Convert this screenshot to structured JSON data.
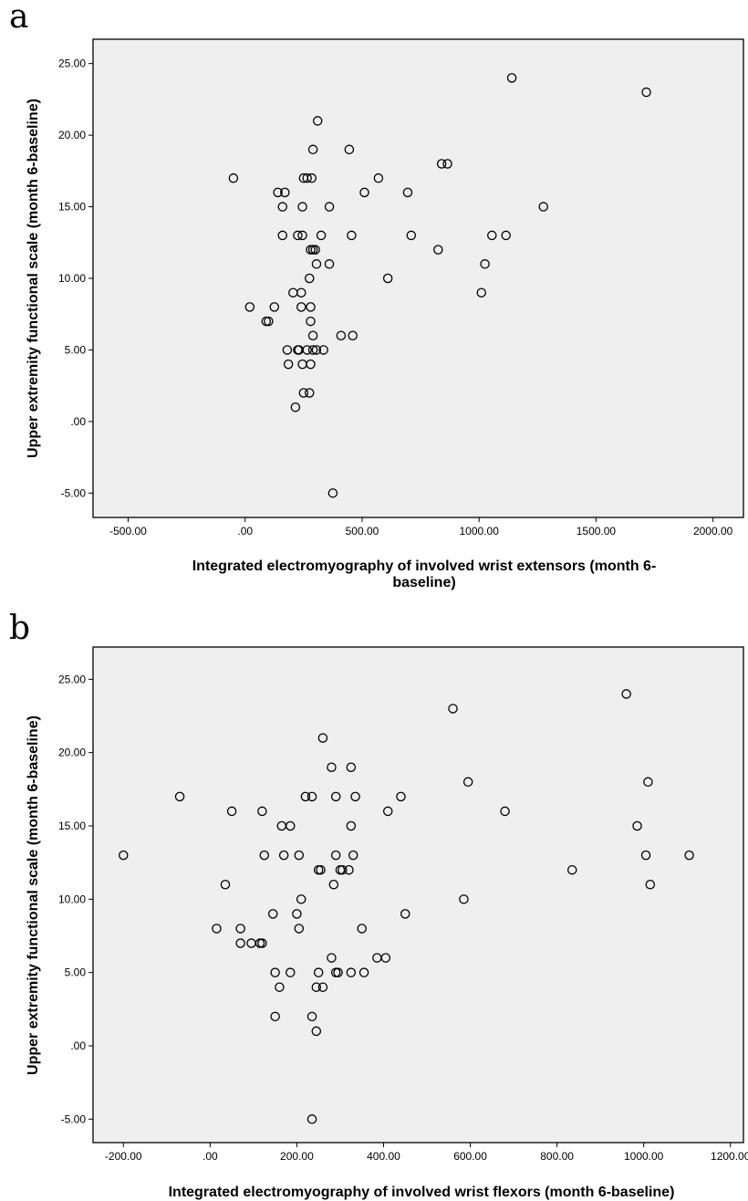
{
  "chart_data": [
    {
      "type": "scatter",
      "panel_label": "a",
      "xlabel_lines": [
        "Integrated electromyography of involved wrist extensors (month 6-",
        "baseline)"
      ],
      "ylabel": "Upper extremity functional scale (month 6-baseline)",
      "xlim": [
        -650,
        2130
      ],
      "ylim": [
        -6.7,
        26.7
      ],
      "x_ticks": [
        -500,
        0,
        500,
        1000,
        1500,
        2000
      ],
      "x_tick_labels": [
        "-500.00",
        ".00",
        "500.00",
        "1000.00",
        "1500.00",
        "2000.00"
      ],
      "y_ticks": [
        -5,
        0,
        5,
        10,
        15,
        20,
        25
      ],
      "y_tick_labels": [
        "-5.00",
        ".00",
        "5.00",
        "10.00",
        "15.00",
        "20.00",
        "25.00"
      ],
      "points": [
        [
          1140,
          24
        ],
        [
          1715,
          23
        ],
        [
          310,
          21
        ],
        [
          290,
          19
        ],
        [
          445,
          19
        ],
        [
          -50,
          17
        ],
        [
          250,
          17
        ],
        [
          265,
          17
        ],
        [
          285,
          17
        ],
        [
          570,
          17
        ],
        [
          840,
          18
        ],
        [
          865,
          18
        ],
        [
          140,
          16
        ],
        [
          170,
          16
        ],
        [
          510,
          16
        ],
        [
          695,
          16
        ],
        [
          160,
          15
        ],
        [
          245,
          15
        ],
        [
          360,
          15
        ],
        [
          1275,
          15
        ],
        [
          160,
          13
        ],
        [
          225,
          13
        ],
        [
          245,
          13
        ],
        [
          325,
          13
        ],
        [
          455,
          13
        ],
        [
          710,
          13
        ],
        [
          1055,
          13
        ],
        [
          1115,
          13
        ],
        [
          280,
          12
        ],
        [
          290,
          12
        ],
        [
          300,
          12
        ],
        [
          825,
          12
        ],
        [
          305,
          11
        ],
        [
          360,
          11
        ],
        [
          1025,
          11
        ],
        [
          275,
          10
        ],
        [
          610,
          10
        ],
        [
          205,
          9
        ],
        [
          240,
          9
        ],
        [
          1010,
          9
        ],
        [
          20,
          8
        ],
        [
          125,
          8
        ],
        [
          240,
          8
        ],
        [
          280,
          8
        ],
        [
          90,
          7
        ],
        [
          100,
          7
        ],
        [
          280,
          7
        ],
        [
          290,
          6
        ],
        [
          410,
          6
        ],
        [
          460,
          6
        ],
        [
          180,
          5
        ],
        [
          225,
          5
        ],
        [
          230,
          5
        ],
        [
          265,
          5
        ],
        [
          290,
          5
        ],
        [
          305,
          5
        ],
        [
          335,
          5
        ],
        [
          185,
          4
        ],
        [
          245,
          4
        ],
        [
          280,
          4
        ],
        [
          250,
          2
        ],
        [
          275,
          2
        ],
        [
          215,
          1
        ],
        [
          375,
          -5
        ]
      ]
    },
    {
      "type": "scatter",
      "panel_label": "b",
      "xlabel_lines": [
        "Integrated electromyography of involved wrist flexors (month 6-baseline)"
      ],
      "ylabel": "Upper extremity functional scale (month 6-baseline)",
      "xlim": [
        -270,
        1230
      ],
      "ylim": [
        -6.6,
        27.2
      ],
      "x_ticks": [
        -200,
        0,
        200,
        400,
        600,
        800,
        1000,
        1200
      ],
      "x_tick_labels": [
        "-200.00",
        ".00",
        "200.00",
        "400.00",
        "600.00",
        "800.00",
        "1000.00",
        "1200.00"
      ],
      "y_ticks": [
        -5,
        0,
        5,
        10,
        15,
        20,
        25
      ],
      "y_tick_labels": [
        "-5.00",
        ".00",
        "5.00",
        "10.00",
        "15.00",
        "20.00",
        "25.00"
      ],
      "points": [
        [
          960,
          24
        ],
        [
          560,
          23
        ],
        [
          260,
          21
        ],
        [
          280,
          19
        ],
        [
          325,
          19
        ],
        [
          -70,
          17
        ],
        [
          220,
          17
        ],
        [
          235,
          17
        ],
        [
          290,
          17
        ],
        [
          335,
          17
        ],
        [
          440,
          17
        ],
        [
          595,
          18
        ],
        [
          1010,
          18
        ],
        [
          50,
          16
        ],
        [
          120,
          16
        ],
        [
          410,
          16
        ],
        [
          680,
          16
        ],
        [
          165,
          15
        ],
        [
          185,
          15
        ],
        [
          325,
          15
        ],
        [
          985,
          15
        ],
        [
          -200,
          13
        ],
        [
          125,
          13
        ],
        [
          170,
          13
        ],
        [
          205,
          13
        ],
        [
          290,
          13
        ],
        [
          330,
          13
        ],
        [
          1005,
          13
        ],
        [
          1105,
          13
        ],
        [
          250,
          12
        ],
        [
          255,
          12
        ],
        [
          300,
          12
        ],
        [
          305,
          12
        ],
        [
          320,
          12
        ],
        [
          835,
          12
        ],
        [
          35,
          11
        ],
        [
          285,
          11
        ],
        [
          1015,
          11
        ],
        [
          210,
          10
        ],
        [
          585,
          10
        ],
        [
          145,
          9
        ],
        [
          200,
          9
        ],
        [
          450,
          9
        ],
        [
          15,
          8
        ],
        [
          70,
          8
        ],
        [
          205,
          8
        ],
        [
          350,
          8
        ],
        [
          70,
          7
        ],
        [
          95,
          7
        ],
        [
          115,
          7
        ],
        [
          120,
          7
        ],
        [
          280,
          6
        ],
        [
          385,
          6
        ],
        [
          405,
          6
        ],
        [
          150,
          5
        ],
        [
          185,
          5
        ],
        [
          250,
          5
        ],
        [
          290,
          5
        ],
        [
          295,
          5
        ],
        [
          325,
          5
        ],
        [
          355,
          5
        ],
        [
          160,
          4
        ],
        [
          245,
          4
        ],
        [
          260,
          4
        ],
        [
          150,
          2
        ],
        [
          235,
          2
        ],
        [
          245,
          1
        ],
        [
          235,
          -5
        ]
      ]
    }
  ]
}
